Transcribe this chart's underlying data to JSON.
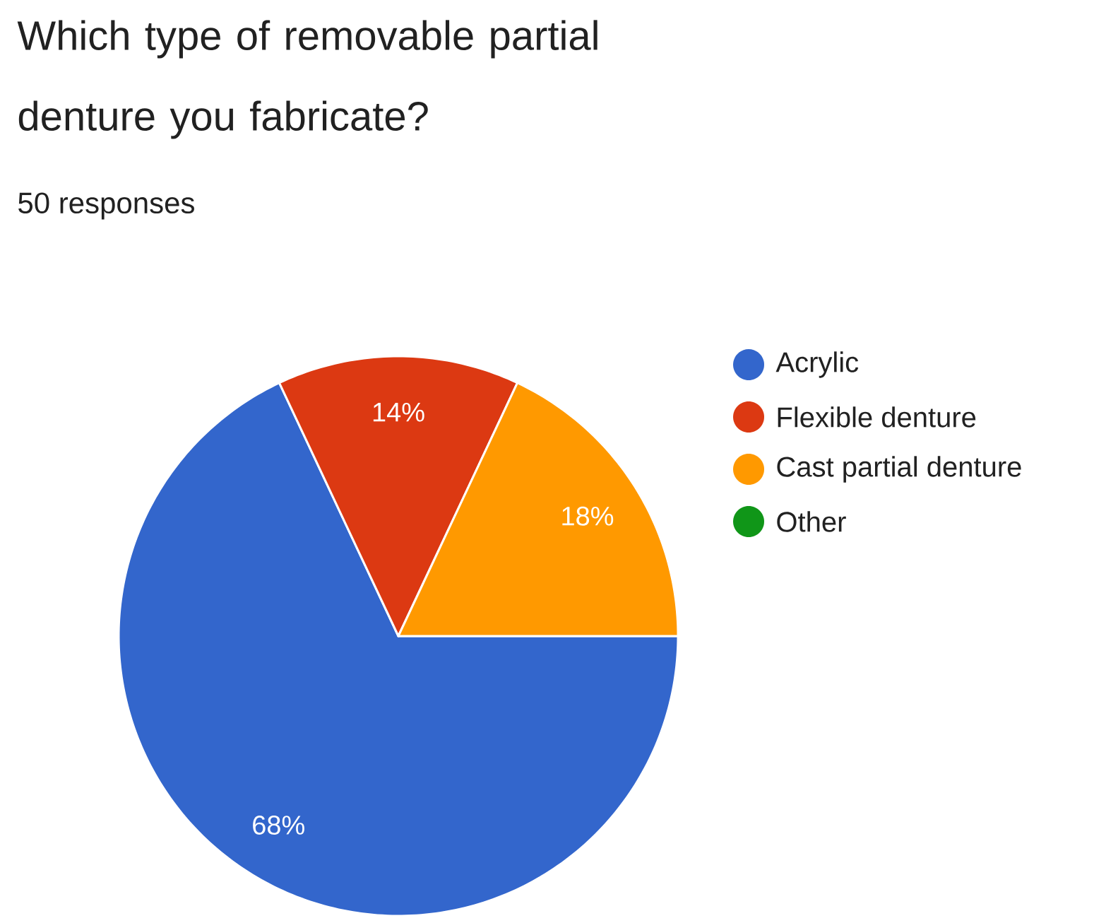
{
  "chart_data": {
    "type": "pie",
    "title": "Which type of removable partial denture you fabricate?",
    "subtitle": "50 responses",
    "categories": [
      "Acrylic",
      "Flexible denture",
      "Cast partial denture",
      "Other"
    ],
    "values": [
      68,
      14,
      18,
      0
    ],
    "colors": [
      "#3366cc",
      "#dc3912",
      "#ff9900",
      "#109618"
    ],
    "value_labels": [
      "68%",
      "14%",
      "18%",
      null
    ],
    "legend": "right"
  }
}
